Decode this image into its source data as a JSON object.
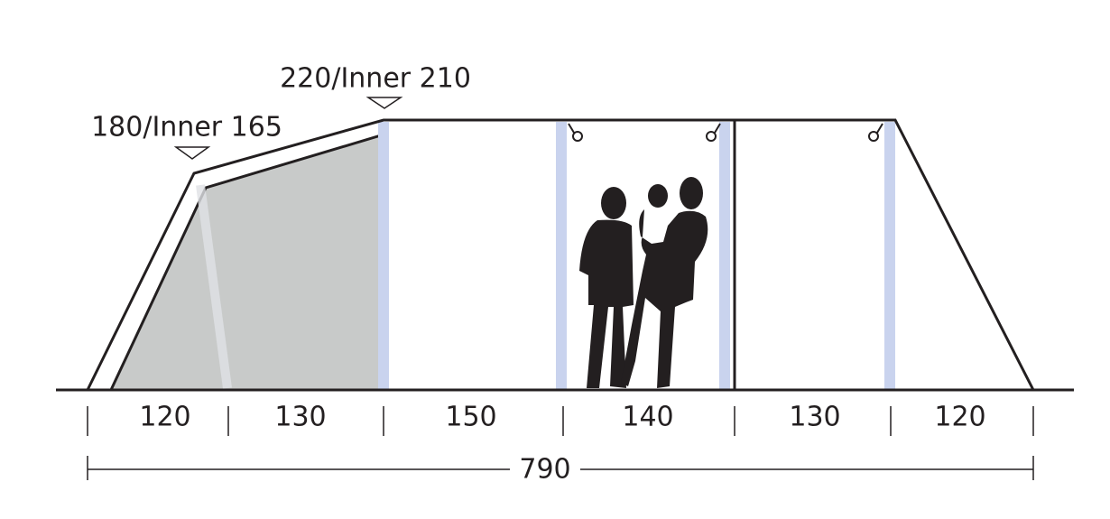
{
  "height_labels": {
    "peak": "220/Inner 210",
    "front": "180/Inner 165"
  },
  "segments": [
    "120",
    "130",
    "150",
    "140",
    "130",
    "120"
  ],
  "total": "790"
}
